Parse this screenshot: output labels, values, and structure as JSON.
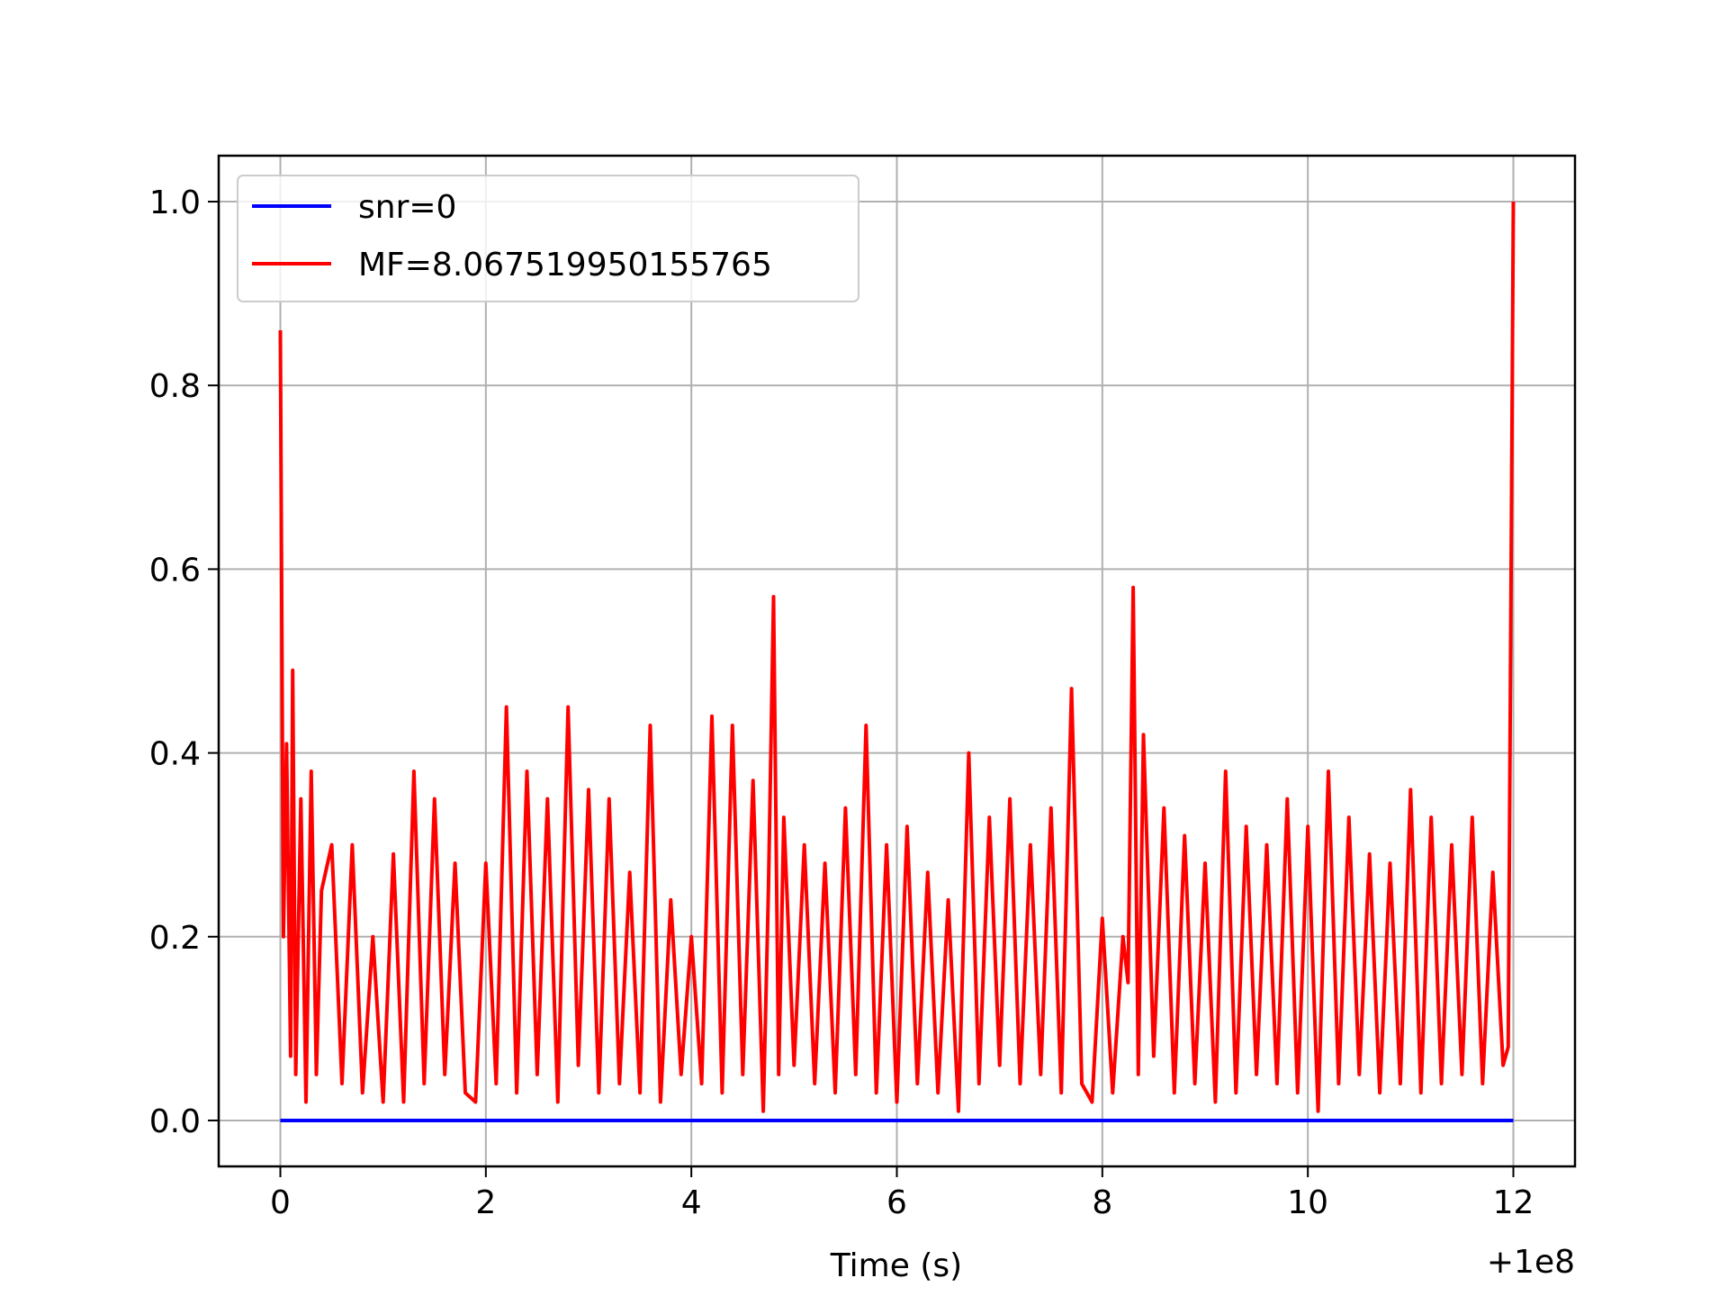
{
  "chart_data": {
    "type": "line",
    "title": "",
    "xlabel": "Time (s)",
    "ylabel": "",
    "x_offset_label": "+1e8",
    "xlim": [
      -0.6,
      12.6
    ],
    "ylim": [
      -0.05,
      1.05
    ],
    "x_ticks": [
      {
        "value": 0,
        "label": "0"
      },
      {
        "value": 2,
        "label": "2"
      },
      {
        "value": 4,
        "label": "4"
      },
      {
        "value": 6,
        "label": "6"
      },
      {
        "value": 8,
        "label": "8"
      },
      {
        "value": 10,
        "label": "10"
      },
      {
        "value": 12,
        "label": "12"
      }
    ],
    "y_ticks": [
      {
        "value": 0.0,
        "label": "0.0"
      },
      {
        "value": 0.2,
        "label": "0.2"
      },
      {
        "value": 0.4,
        "label": "0.4"
      },
      {
        "value": 0.6,
        "label": "0.6"
      },
      {
        "value": 0.8,
        "label": "0.8"
      },
      {
        "value": 1.0,
        "label": "1.0"
      }
    ],
    "grid": true,
    "legend_position": "upper-left",
    "series": [
      {
        "name": "snr=0",
        "color": "#0000ff",
        "x": [
          0,
          12
        ],
        "y": [
          0,
          0
        ]
      },
      {
        "name": "MF=8.067519950155765",
        "color": "#ff0000",
        "x": [
          0,
          0.03,
          0.06,
          0.1,
          0.12,
          0.15,
          0.2,
          0.25,
          0.3,
          0.35,
          0.4,
          0.5,
          0.6,
          0.7,
          0.8,
          0.9,
          1.0,
          1.1,
          1.2,
          1.3,
          1.4,
          1.5,
          1.6,
          1.7,
          1.8,
          1.9,
          2.0,
          2.1,
          2.2,
          2.3,
          2.4,
          2.5,
          2.6,
          2.7,
          2.8,
          2.9,
          3.0,
          3.1,
          3.2,
          3.3,
          3.4,
          3.5,
          3.6,
          3.7,
          3.8,
          3.9,
          4.0,
          4.1,
          4.2,
          4.3,
          4.4,
          4.5,
          4.6,
          4.7,
          4.75,
          4.8,
          4.85,
          4.9,
          5.0,
          5.1,
          5.2,
          5.3,
          5.4,
          5.5,
          5.6,
          5.7,
          5.8,
          5.9,
          6.0,
          6.1,
          6.2,
          6.3,
          6.4,
          6.5,
          6.6,
          6.7,
          6.8,
          6.9,
          7.0,
          7.1,
          7.2,
          7.3,
          7.4,
          7.5,
          7.6,
          7.7,
          7.8,
          7.9,
          8.0,
          8.1,
          8.2,
          8.25,
          8.3,
          8.35,
          8.4,
          8.5,
          8.6,
          8.7,
          8.8,
          8.9,
          9.0,
          9.1,
          9.2,
          9.3,
          9.4,
          9.5,
          9.6,
          9.7,
          9.8,
          9.9,
          10.0,
          10.1,
          10.2,
          10.3,
          10.4,
          10.5,
          10.6,
          10.7,
          10.8,
          10.9,
          11.0,
          11.1,
          11.2,
          11.3,
          11.4,
          11.5,
          11.6,
          11.7,
          11.8,
          11.9,
          11.95,
          12.0
        ],
        "y": [
          0.86,
          0.2,
          0.41,
          0.07,
          0.49,
          0.05,
          0.35,
          0.02,
          0.38,
          0.05,
          0.25,
          0.3,
          0.04,
          0.3,
          0.03,
          0.2,
          0.02,
          0.29,
          0.02,
          0.38,
          0.04,
          0.35,
          0.05,
          0.28,
          0.03,
          0.02,
          0.28,
          0.04,
          0.45,
          0.03,
          0.38,
          0.05,
          0.35,
          0.02,
          0.45,
          0.06,
          0.36,
          0.03,
          0.35,
          0.04,
          0.27,
          0.03,
          0.43,
          0.02,
          0.24,
          0.05,
          0.2,
          0.04,
          0.44,
          0.03,
          0.43,
          0.05,
          0.37,
          0.01,
          0.25,
          0.57,
          0.05,
          0.33,
          0.06,
          0.3,
          0.04,
          0.28,
          0.03,
          0.34,
          0.05,
          0.43,
          0.03,
          0.3,
          0.02,
          0.32,
          0.04,
          0.27,
          0.03,
          0.24,
          0.01,
          0.4,
          0.04,
          0.33,
          0.06,
          0.35,
          0.04,
          0.3,
          0.05,
          0.34,
          0.03,
          0.47,
          0.04,
          0.02,
          0.22,
          0.03,
          0.2,
          0.15,
          0.58,
          0.05,
          0.42,
          0.07,
          0.34,
          0.03,
          0.31,
          0.04,
          0.28,
          0.02,
          0.38,
          0.03,
          0.32,
          0.05,
          0.3,
          0.04,
          0.35,
          0.03,
          0.32,
          0.01,
          0.38,
          0.04,
          0.33,
          0.05,
          0.29,
          0.03,
          0.28,
          0.04,
          0.36,
          0.03,
          0.33,
          0.04,
          0.3,
          0.05,
          0.33,
          0.04,
          0.27,
          0.06,
          0.08,
          1.0
        ]
      }
    ]
  }
}
